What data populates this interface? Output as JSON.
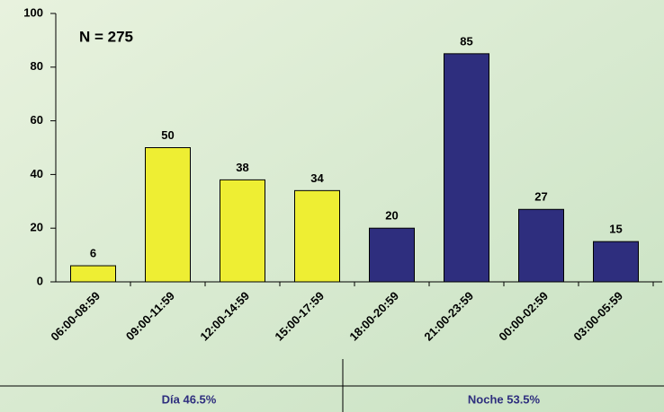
{
  "chart_data": {
    "type": "bar",
    "annotation": "N = 275",
    "categories": [
      "06:00-08:59",
      "09:00-11:59",
      "12:00-14:59",
      "15:00-17:59",
      "18:00-20:59",
      "21:00-23:59",
      "00:00-02:59",
      "03:00-05:59"
    ],
    "values": [
      6,
      50,
      38,
      34,
      20,
      85,
      27,
      15
    ],
    "colors": [
      "#eeee33",
      "#eeee33",
      "#eeee33",
      "#eeee33",
      "#2e2e7e",
      "#2e2e7e",
      "#2e2e7e",
      "#2e2e7e"
    ],
    "ylim": [
      0,
      100
    ],
    "yticks": [
      0,
      20,
      40,
      60,
      80,
      100
    ],
    "grid": false,
    "groups": [
      "Día 46.5%",
      "Noche 53.5%"
    ]
  }
}
